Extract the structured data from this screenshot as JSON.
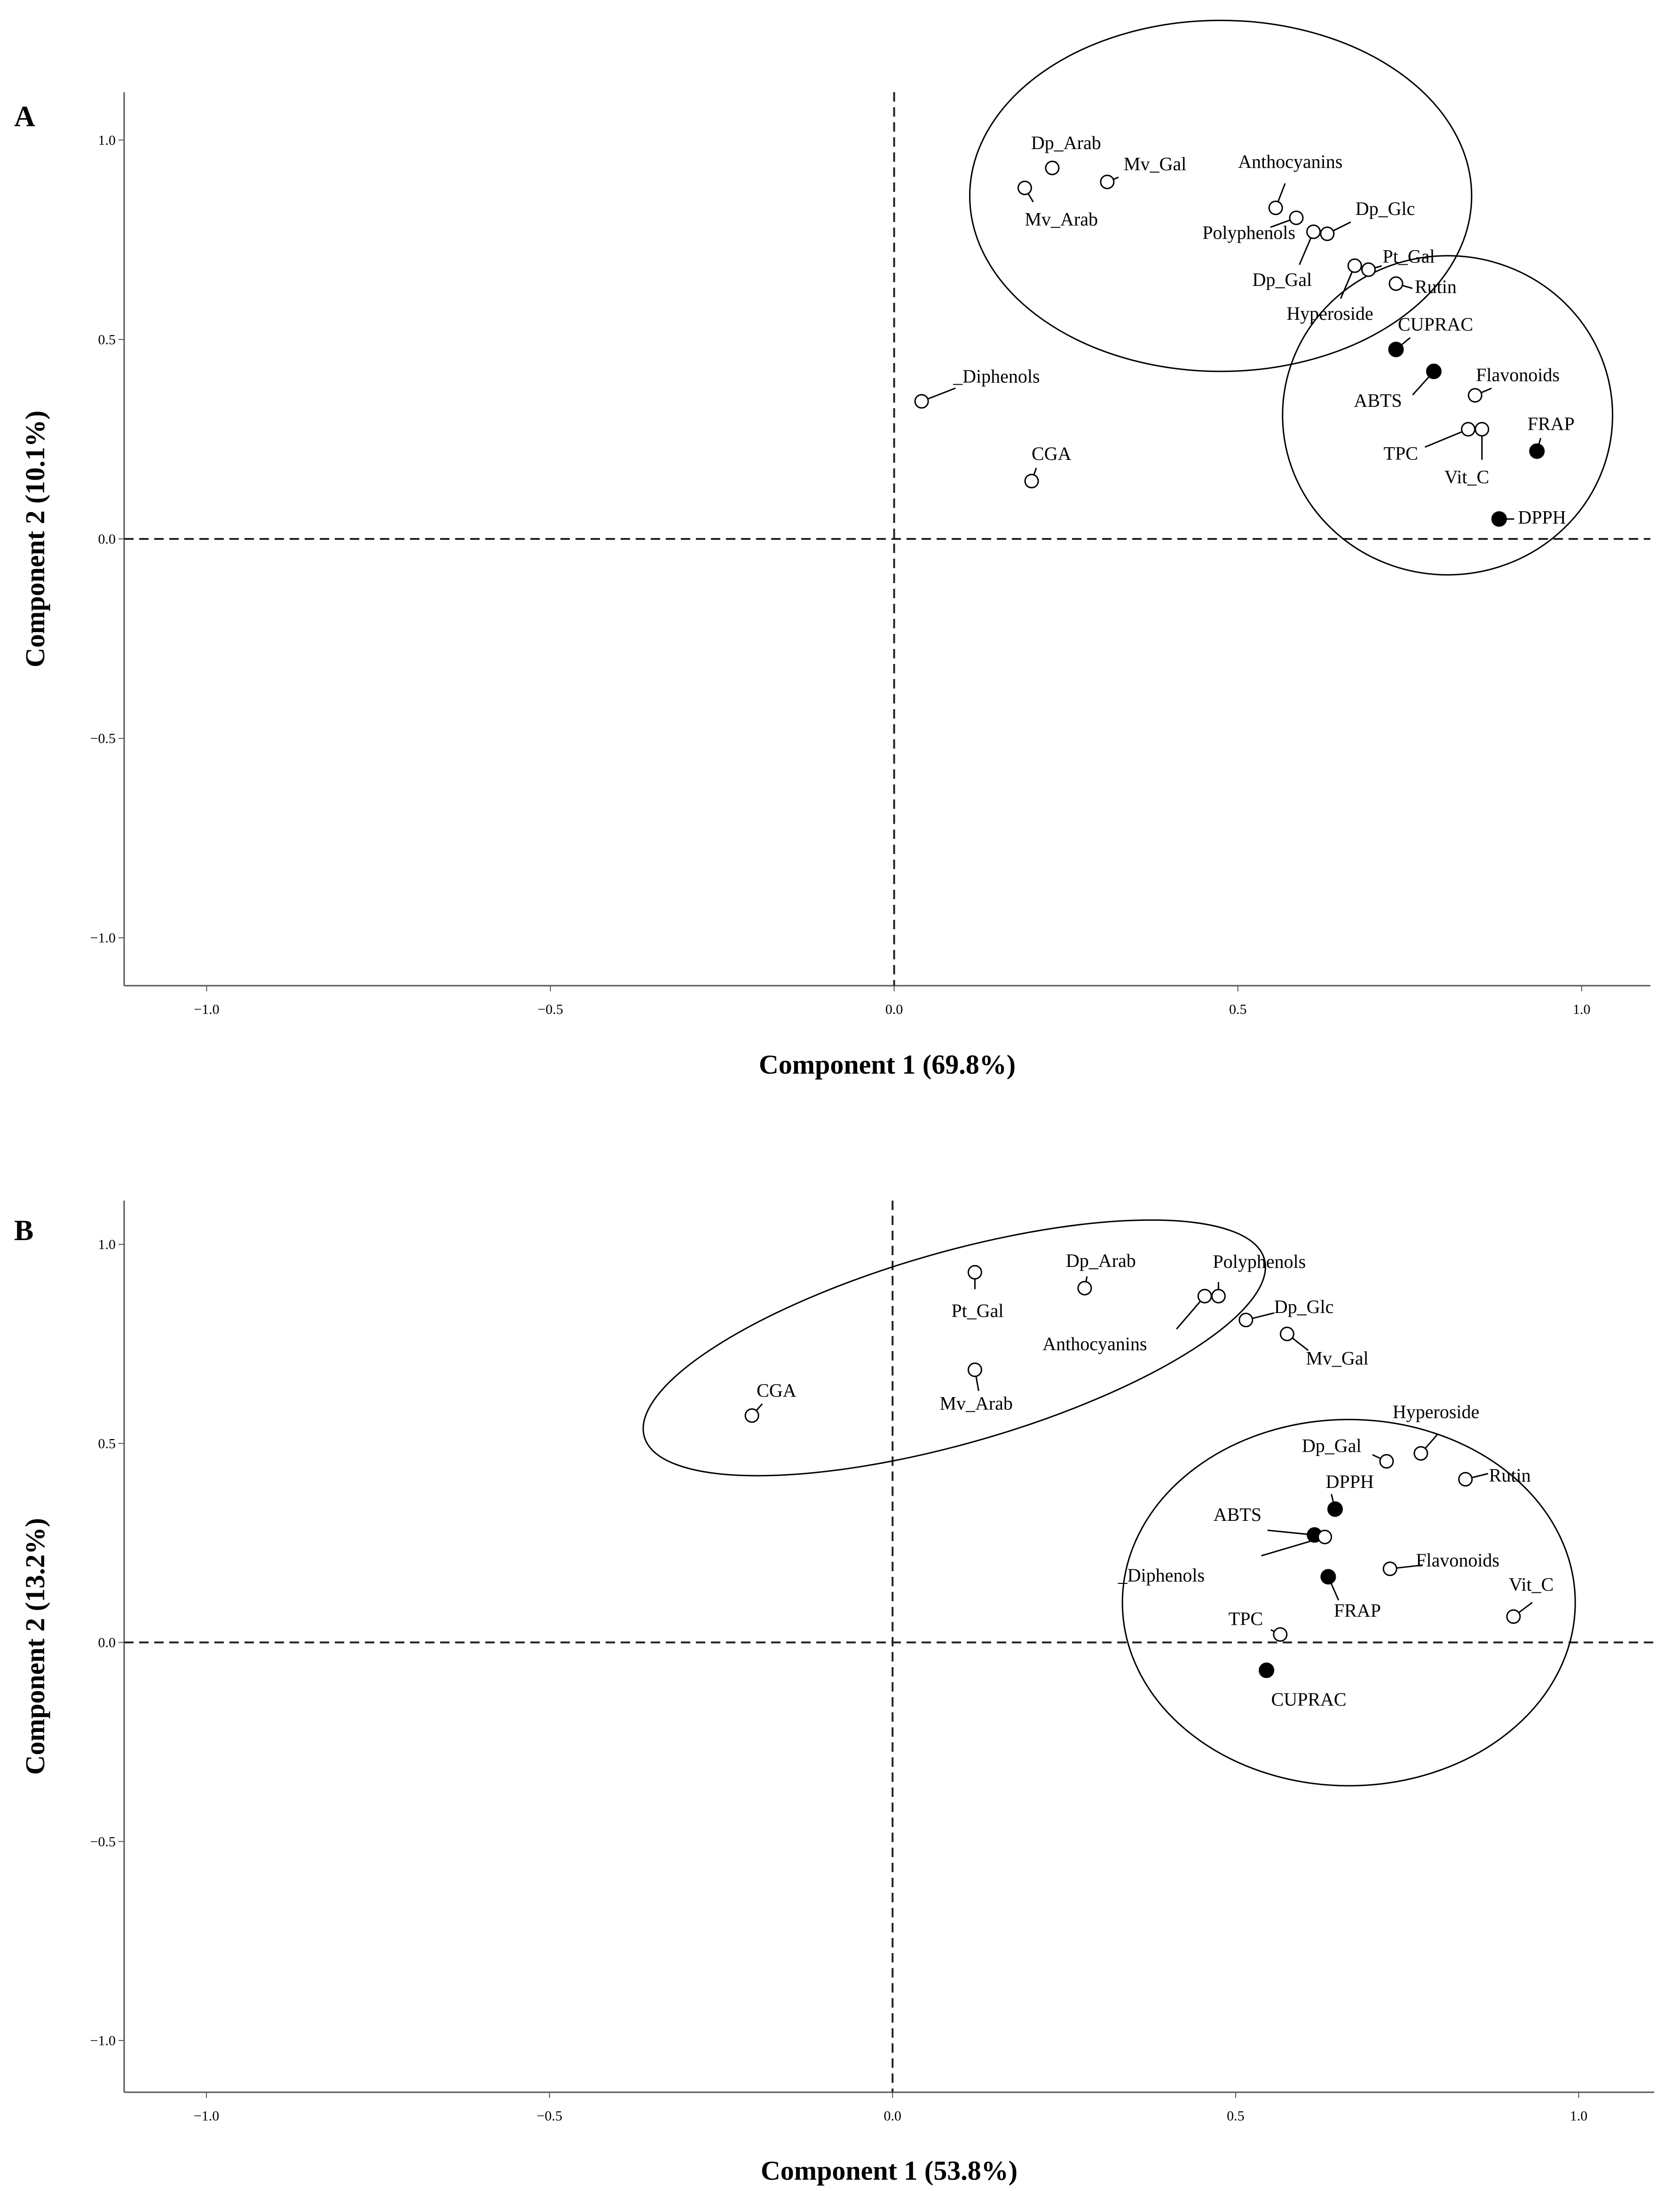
{
  "chart_data": [
    {
      "type": "scatter",
      "panel": "A",
      "xlabel": "Component 1 (69.8%)",
      "ylabel": "Component 2 (10.1%)",
      "xlim": [
        -1.12,
        1.1
      ],
      "ylim": [
        -1.12,
        1.12
      ],
      "xticks": [
        -1.0,
        -0.5,
        0.0,
        0.5,
        1.0
      ],
      "yticks": [
        -1.0,
        -0.5,
        0.0,
        0.5,
        1.0
      ],
      "xtick_labels": [
        "−1.0",
        "−0.5",
        "0.0",
        "0.5",
        "1.0"
      ],
      "ytick_labels": [
        "−1.0",
        "−0.5",
        "0.0",
        "0.5",
        "1.0"
      ],
      "reference_lines": {
        "x": 0.0,
        "y": 0.0
      },
      "points": [
        {
          "label": "Dp_Arab",
          "x": 0.23,
          "y": 0.93,
          "filled": false
        },
        {
          "label": "Mv_Gal",
          "x": 0.31,
          "y": 0.895,
          "filled": false
        },
        {
          "label": "Mv_Arab",
          "x": 0.19,
          "y": 0.88,
          "filled": false
        },
        {
          "label": "Anthocyanins",
          "x": 0.555,
          "y": 0.83,
          "filled": false
        },
        {
          "label": "Polyphenols",
          "x": 0.585,
          "y": 0.805,
          "filled": false
        },
        {
          "label": "Dp_Glc",
          "x": 0.63,
          "y": 0.765,
          "filled": false
        },
        {
          "label": "Dp_Gal",
          "x": 0.61,
          "y": 0.77,
          "filled": false
        },
        {
          "label": "Pt_Gal",
          "x": 0.69,
          "y": 0.675,
          "filled": false
        },
        {
          "label": "Hyperoside",
          "x": 0.67,
          "y": 0.685,
          "filled": false
        },
        {
          "label": "Rutin",
          "x": 0.73,
          "y": 0.64,
          "filled": false
        },
        {
          "label": "CUPRAC",
          "x": 0.73,
          "y": 0.475,
          "filled": true
        },
        {
          "label": "ABTS",
          "x": 0.785,
          "y": 0.42,
          "filled": true
        },
        {
          "label": "Flavonoids",
          "x": 0.845,
          "y": 0.36,
          "filled": false
        },
        {
          "label": "TPC",
          "x": 0.835,
          "y": 0.275,
          "filled": false
        },
        {
          "label": "Vit_C",
          "x": 0.855,
          "y": 0.275,
          "filled": false
        },
        {
          "label": "FRAP",
          "x": 0.935,
          "y": 0.22,
          "filled": true
        },
        {
          "label": "DPPH",
          "x": 0.88,
          "y": 0.05,
          "filled": true
        },
        {
          "label": "_Diphenols",
          "x": 0.04,
          "y": 0.345,
          "filled": false
        },
        {
          "label": "CGA",
          "x": 0.2,
          "y": 0.145,
          "filled": false
        }
      ],
      "clusters": [
        {
          "cx": 0.475,
          "cy": 0.86,
          "rx": 0.365,
          "ry": 0.44,
          "rotate": 0
        },
        {
          "cx": 0.805,
          "cy": 0.31,
          "rx": 0.24,
          "ry": 0.4,
          "rotate": 0
        }
      ]
    },
    {
      "type": "scatter",
      "panel": "B",
      "xlabel": "Component 1 (53.8%)",
      "ylabel": "Component 2 (13.2%)",
      "xlim": [
        -1.12,
        1.11
      ],
      "ylim": [
        -1.13,
        1.11
      ],
      "xticks": [
        -1.0,
        -0.5,
        0.0,
        0.5,
        1.0
      ],
      "yticks": [
        -1.0,
        -0.5,
        0.0,
        0.5,
        1.0
      ],
      "xtick_labels": [
        "−1.0",
        "−0.5",
        "0.0",
        "0.5",
        "1.0"
      ],
      "ytick_labels": [
        "−1.0",
        "−0.5",
        "0.0",
        "0.5",
        "1.0"
      ],
      "reference_lines": {
        "x": 0.0,
        "y": 0.0
      },
      "points": [
        {
          "label": "Pt_Gal",
          "x": 0.12,
          "y": 0.93,
          "filled": false
        },
        {
          "label": "Dp_Arab",
          "x": 0.28,
          "y": 0.89,
          "filled": false
        },
        {
          "label": "Polyphenols",
          "x": 0.475,
          "y": 0.87,
          "filled": false
        },
        {
          "label": "Anthocyanins",
          "x": 0.455,
          "y": 0.87,
          "filled": false
        },
        {
          "label": "Dp_Glc",
          "x": 0.515,
          "y": 0.81,
          "filled": false
        },
        {
          "label": "Mv_Gal",
          "x": 0.575,
          "y": 0.775,
          "filled": false
        },
        {
          "label": "Mv_Arab",
          "x": 0.12,
          "y": 0.685,
          "filled": false
        },
        {
          "label": "CGA",
          "x": -0.205,
          "y": 0.57,
          "filled": false
        },
        {
          "label": "Hyperoside",
          "x": 0.77,
          "y": 0.475,
          "filled": false
        },
        {
          "label": "Dp_Gal",
          "x": 0.72,
          "y": 0.455,
          "filled": false
        },
        {
          "label": "Rutin",
          "x": 0.835,
          "y": 0.41,
          "filled": false
        },
        {
          "label": "DPPH",
          "x": 0.645,
          "y": 0.335,
          "filled": true
        },
        {
          "label": "ABTS",
          "x": 0.615,
          "y": 0.27,
          "filled": true
        },
        {
          "label": "_Diphenols",
          "x": 0.63,
          "y": 0.265,
          "filled": false
        },
        {
          "label": "Flavonoids",
          "x": 0.725,
          "y": 0.185,
          "filled": false
        },
        {
          "label": "FRAP",
          "x": 0.635,
          "y": 0.165,
          "filled": true
        },
        {
          "label": "Vit_C",
          "x": 0.905,
          "y": 0.065,
          "filled": false
        },
        {
          "label": "TPC",
          "x": 0.565,
          "y": 0.02,
          "filled": false
        },
        {
          "label": "CUPRAC",
          "x": 0.545,
          "y": -0.07,
          "filled": true
        }
      ],
      "clusters": [
        {
          "cx": 0.09,
          "cy": 0.74,
          "rx": 0.47,
          "ry": 0.24,
          "rotate": -16
        },
        {
          "cx": 0.665,
          "cy": 0.1,
          "rx": 0.33,
          "ry": 0.46,
          "rotate": 0
        }
      ]
    }
  ]
}
